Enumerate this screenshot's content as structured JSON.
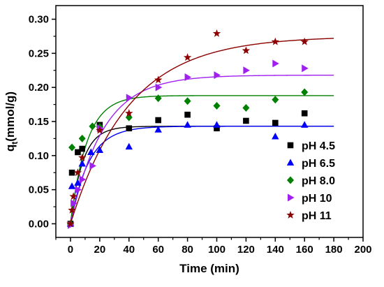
{
  "chart_data": {
    "type": "scatter",
    "title": "",
    "xlabel": "Time (min)",
    "ylabel": "q_t(mmol/g)",
    "xlim": [
      -10,
      200
    ],
    "ylim": [
      -0.02,
      0.32
    ],
    "x_ticks": [
      0,
      20,
      40,
      60,
      80,
      100,
      120,
      140,
      160,
      180,
      200
    ],
    "y_ticks": [
      0.0,
      0.05,
      0.1,
      0.15,
      0.2,
      0.25,
      0.3
    ],
    "x_tick_labels": [
      "0",
      "20",
      "40",
      "60",
      "80",
      "100",
      "120",
      "140",
      "160",
      "180",
      "200"
    ],
    "y_tick_labels": [
      "0.00",
      "0.05",
      "0.10",
      "0.15",
      "0.20",
      "0.25",
      "0.30"
    ],
    "grid": false,
    "legend_position": "lower-right",
    "fit_x_range": [
      0,
      180
    ],
    "series": [
      {
        "name": "pH 4.5",
        "marker": "square",
        "color": "#000000",
        "fit": {
          "qe": 0.143,
          "k": 0.12
        },
        "points": [
          [
            0,
            0.0
          ],
          [
            1,
            0.075
          ],
          [
            5,
            0.105
          ],
          [
            8,
            0.11
          ],
          [
            20,
            0.145
          ],
          [
            40,
            0.14
          ],
          [
            60,
            0.152
          ],
          [
            80,
            0.16
          ],
          [
            100,
            0.14
          ],
          [
            120,
            0.151
          ],
          [
            140,
            0.148
          ],
          [
            160,
            0.162
          ]
        ]
      },
      {
        "name": "pH 6.5",
        "marker": "triangle-up",
        "color": "#0000ff",
        "fit": {
          "qe": 0.143,
          "k": 0.08
        },
        "points": [
          [
            0,
            0.0
          ],
          [
            1,
            0.055
          ],
          [
            5,
            0.06
          ],
          [
            8,
            0.088
          ],
          [
            14,
            0.105
          ],
          [
            20,
            0.108
          ],
          [
            40,
            0.113
          ],
          [
            60,
            0.138
          ],
          [
            80,
            0.145
          ],
          [
            100,
            0.145
          ],
          [
            140,
            0.128
          ],
          [
            160,
            0.145
          ]
        ]
      },
      {
        "name": "pH 8.0",
        "marker": "diamond",
        "color": "#008000",
        "fit": {
          "qe": 0.188,
          "k": 0.09
        },
        "points": [
          [
            0,
            0.0
          ],
          [
            1,
            0.112
          ],
          [
            8,
            0.125
          ],
          [
            15,
            0.143
          ],
          [
            20,
            0.142
          ],
          [
            40,
            0.156
          ],
          [
            60,
            0.184
          ],
          [
            80,
            0.18
          ],
          [
            100,
            0.173
          ],
          [
            120,
            0.17
          ],
          [
            140,
            0.182
          ],
          [
            160,
            0.193
          ]
        ]
      },
      {
        "name": "pH 10",
        "marker": "triangle-right",
        "color": "#a020f0",
        "fit": {
          "qe": 0.218,
          "k": 0.045
        },
        "points": [
          [
            0,
            -0.002
          ],
          [
            2,
            0.03
          ],
          [
            5,
            0.05
          ],
          [
            8,
            0.065
          ],
          [
            15,
            0.085
          ],
          [
            20,
            0.14
          ],
          [
            40,
            0.185
          ],
          [
            60,
            0.2
          ],
          [
            80,
            0.215
          ],
          [
            100,
            0.218
          ],
          [
            120,
            0.225
          ],
          [
            140,
            0.235
          ],
          [
            160,
            0.228
          ]
        ]
      },
      {
        "name": "pH 11",
        "marker": "star",
        "color": "#8b0000",
        "fit": {
          "qe": 0.275,
          "k": 0.025
        },
        "points": [
          [
            0,
            0.0
          ],
          [
            1,
            0.02
          ],
          [
            2,
            0.04
          ],
          [
            5,
            0.075
          ],
          [
            8,
            0.097
          ],
          [
            20,
            0.137
          ],
          [
            40,
            0.162
          ],
          [
            60,
            0.211
          ],
          [
            80,
            0.244
          ],
          [
            100,
            0.279
          ],
          [
            120,
            0.254
          ],
          [
            140,
            0.267
          ],
          [
            160,
            0.267
          ]
        ]
      }
    ]
  }
}
